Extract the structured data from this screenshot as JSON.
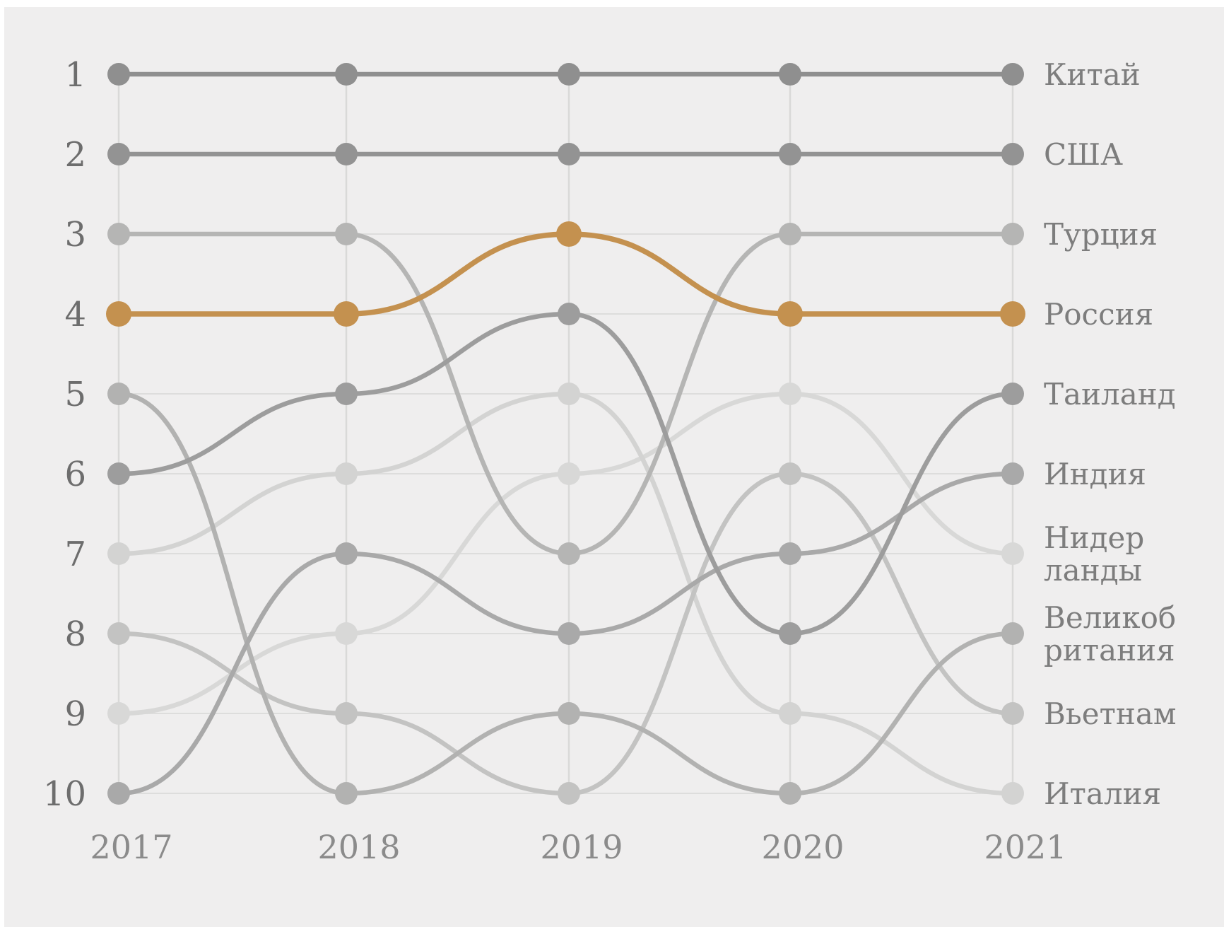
{
  "chart_data": {
    "type": "line",
    "subtype": "bump-rank-chart",
    "title": "",
    "years": [
      "2017",
      "2018",
      "2019",
      "2020",
      "2021"
    ],
    "rank_axis_labels": [
      "1",
      "2",
      "3",
      "4",
      "5",
      "6",
      "7",
      "8",
      "9",
      "10"
    ],
    "rank_range": [
      1,
      10
    ],
    "legend_position": "right",
    "grid": true,
    "series": [
      {
        "name": "Китай",
        "color": "#8f8f8f",
        "ranks": [
          1,
          1,
          1,
          1,
          1
        ],
        "highlight": false,
        "label_lines": [
          "Китай"
        ]
      },
      {
        "name": "США",
        "color": "#939393",
        "ranks": [
          2,
          2,
          2,
          2,
          2
        ],
        "highlight": false,
        "label_lines": [
          "США"
        ]
      },
      {
        "name": "Турция",
        "color": "#b5b5b4",
        "ranks": [
          3,
          3,
          7,
          3,
          3
        ],
        "highlight": false,
        "label_lines": [
          "Турция"
        ]
      },
      {
        "name": "Россия",
        "color": "#c4914f",
        "ranks": [
          4,
          4,
          3,
          4,
          4
        ],
        "highlight": true,
        "label_lines": [
          "Россия"
        ]
      },
      {
        "name": "Таиланд",
        "color": "#9d9d9d",
        "ranks": [
          6,
          5,
          4,
          8,
          5
        ],
        "highlight": false,
        "label_lines": [
          "Таиланд"
        ]
      },
      {
        "name": "Индия",
        "color": "#a9a9a9",
        "ranks": [
          10,
          7,
          8,
          7,
          6
        ],
        "highlight": false,
        "label_lines": [
          "Индия"
        ]
      },
      {
        "name": "Нидерланды",
        "color": "#d8d8d7",
        "ranks": [
          9,
          8,
          6,
          5,
          7
        ],
        "highlight": false,
        "label_lines": [
          "Нидер",
          "ланды"
        ]
      },
      {
        "name": "Великобритания",
        "color": "#b2b2b1",
        "ranks": [
          5,
          10,
          9,
          10,
          8
        ],
        "highlight": false,
        "label_lines": [
          "Великоб",
          "ритания"
        ]
      },
      {
        "name": "Вьетнам",
        "color": "#c3c3c2",
        "ranks": [
          8,
          9,
          10,
          6,
          9
        ],
        "highlight": false,
        "label_lines": [
          "Вьетнам"
        ]
      },
      {
        "name": "Италия",
        "color": "#d3d3d2",
        "ranks": [
          7,
          6,
          5,
          9,
          10
        ],
        "highlight": false,
        "label_lines": [
          "Италия"
        ]
      }
    ]
  },
  "colors": {
    "page_background": "#ffffff",
    "chart_background": "#efeeee",
    "gridline": "#dddddc",
    "column_line": "#d9d9d8",
    "rank_label": "#6d6d6d",
    "year_label": "#8b8b8b",
    "country_label": "#7d7d7d",
    "accent_orange": "#c4914f"
  }
}
